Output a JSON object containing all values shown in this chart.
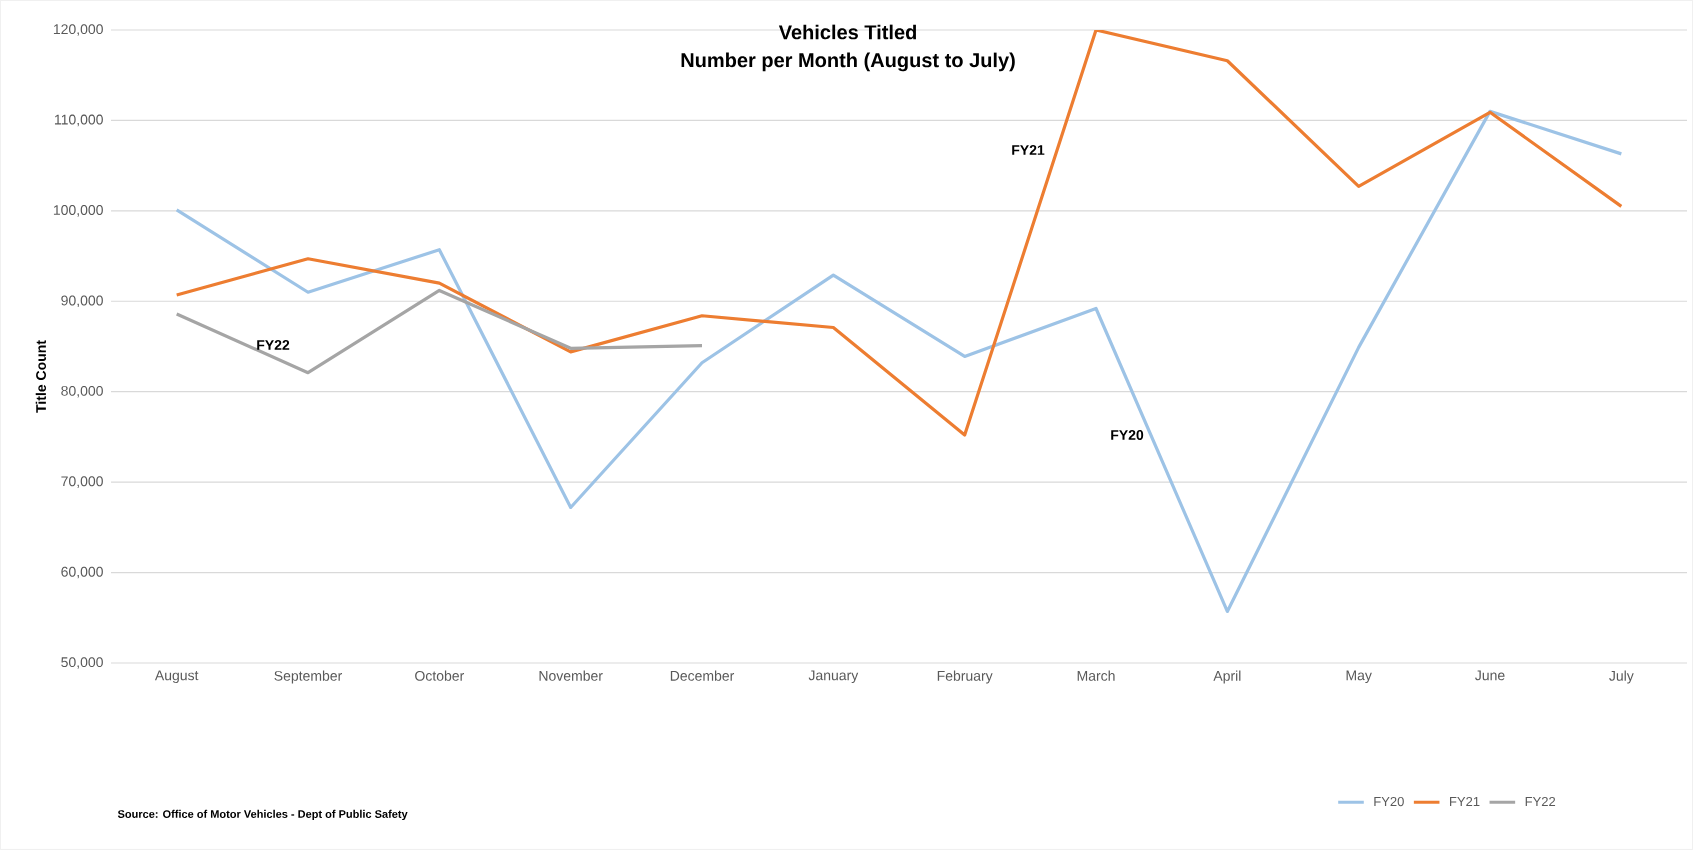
{
  "chart_data": {
    "type": "line",
    "title": "Vehicles Titled",
    "subtitle": "Number per Month (August to July)",
    "ylabel": "Title Count",
    "categories": [
      "August",
      "September",
      "October",
      "November",
      "December",
      "January",
      "February",
      "March",
      "April",
      "May",
      "June",
      "July"
    ],
    "series": [
      {
        "name": "FY20",
        "color": "#9dc3e6",
        "values": [
          100100,
          91000,
          95700,
          67200,
          83200,
          92900,
          83900,
          89200,
          55700,
          84900,
          111000,
          106300
        ]
      },
      {
        "name": "FY21",
        "color": "#ed7d31",
        "values": [
          90700,
          94700,
          92000,
          84400,
          88400,
          87100,
          75200,
          120000,
          116600,
          102700,
          110900,
          100500
        ]
      },
      {
        "name": "FY22",
        "color": "#a5a5a5",
        "values": [
          88600,
          82100,
          91200,
          84800,
          85100,
          null,
          null,
          null,
          null,
          null,
          null,
          null
        ]
      }
    ],
    "ylim": [
      50000,
      120000
    ],
    "yticks": [
      {
        "value": 50000,
        "label": "50,000"
      },
      {
        "value": 60000,
        "label": "60,000"
      },
      {
        "value": 70000,
        "label": "70,000"
      },
      {
        "value": 80000,
        "label": "80,000"
      },
      {
        "value": 90000,
        "label": "90,000"
      },
      {
        "value": 100000,
        "label": "100,000"
      },
      {
        "value": 110000,
        "label": "110,000"
      },
      {
        "value": 120000,
        "label": "120,000"
      }
    ],
    "grid": "y",
    "legend": "bottom right",
    "marker": "none",
    "line_style": "solid",
    "annotations": [
      "FY22",
      "FY21",
      "FY20",
      "Source: Office of Motor Vehicles - Dept of Public Safety"
    ]
  }
}
